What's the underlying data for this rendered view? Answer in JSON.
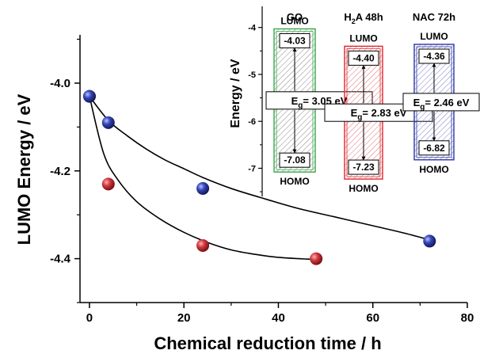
{
  "chart_data": [
    {
      "type": "scatter",
      "title": "",
      "xlabel": "Chemical reduction time / h",
      "ylabel": "LUMO Energy / eV",
      "xlim": [
        -2,
        80
      ],
      "ylim": [
        -4.5,
        -3.89
      ],
      "xticks": [
        0,
        20,
        40,
        60,
        80
      ],
      "yticks": [
        -4.0,
        -4.2,
        -4.4
      ],
      "ytick_labels": [
        "-4.0",
        "-4.2",
        "-4.4"
      ],
      "grid": false,
      "series": [
        {
          "color": "#c0282d",
          "marker": "sphere",
          "x": [
            0,
            4,
            24,
            48
          ],
          "y": [
            -4.03,
            -4.23,
            -4.37,
            -4.4
          ],
          "fit_curve": [
            [
              0,
              -4.03
            ],
            [
              3,
              -4.16
            ],
            [
              6,
              -4.22
            ],
            [
              10,
              -4.27
            ],
            [
              15,
              -4.31
            ],
            [
              20,
              -4.34
            ],
            [
              25,
              -4.363
            ],
            [
              30,
              -4.38
            ],
            [
              35,
              -4.39
            ],
            [
              40,
              -4.397
            ],
            [
              48,
              -4.402
            ]
          ]
        },
        {
          "color": "#2b3a9c",
          "marker": "sphere",
          "x": [
            0,
            4,
            24,
            72
          ],
          "y": [
            -4.03,
            -4.09,
            -4.24,
            -4.36
          ],
          "fit_curve": [
            [
              0,
              -4.03
            ],
            [
              4,
              -4.085
            ],
            [
              8,
              -4.12
            ],
            [
              12,
              -4.15
            ],
            [
              16,
              -4.175
            ],
            [
              20,
              -4.195
            ],
            [
              24,
              -4.215
            ],
            [
              30,
              -4.24
            ],
            [
              36,
              -4.26
            ],
            [
              44,
              -4.285
            ],
            [
              52,
              -4.305
            ],
            [
              60,
              -4.325
            ],
            [
              66,
              -4.34
            ],
            [
              72,
              -4.357
            ]
          ]
        }
      ]
    },
    {
      "type": "bar",
      "subtype": "energy-level-diagram",
      "ylabel": "Energy / eV",
      "ylim": [
        -7.6,
        -3.55
      ],
      "yticks": [
        -4,
        -5,
        -6,
        -7
      ],
      "lumo_label": "LUMO",
      "homo_label": "HOMO",
      "samples": [
        {
          "name": "GO",
          "name_base": "GO",
          "name_sub": "",
          "name_rest": "",
          "lumo": -4.03,
          "homo": -7.08,
          "lumo_text": "-4.03",
          "homo_text": "-7.08",
          "eg": "3.05 eV",
          "color": "#3aa64a"
        },
        {
          "name": "H2A 48h",
          "name_base": "H",
          "name_sub": "2",
          "name_rest": "A 48h",
          "lumo": -4.4,
          "homo": -7.23,
          "lumo_text": "-4.40",
          "homo_text": "-7.23",
          "eg": "2.83 eV",
          "color": "#e0262e"
        },
        {
          "name": "NAC 72h",
          "name_base": "NAC 72h",
          "name_sub": "",
          "name_rest": "",
          "lumo": -4.36,
          "homo": -6.82,
          "lumo_text": "-4.36",
          "homo_text": "-6.82",
          "eg": "2.46 eV",
          "color": "#2b35a8"
        }
      ],
      "eg_prefix": "E",
      "eg_sub": "g",
      "eg_eq": "= "
    }
  ]
}
